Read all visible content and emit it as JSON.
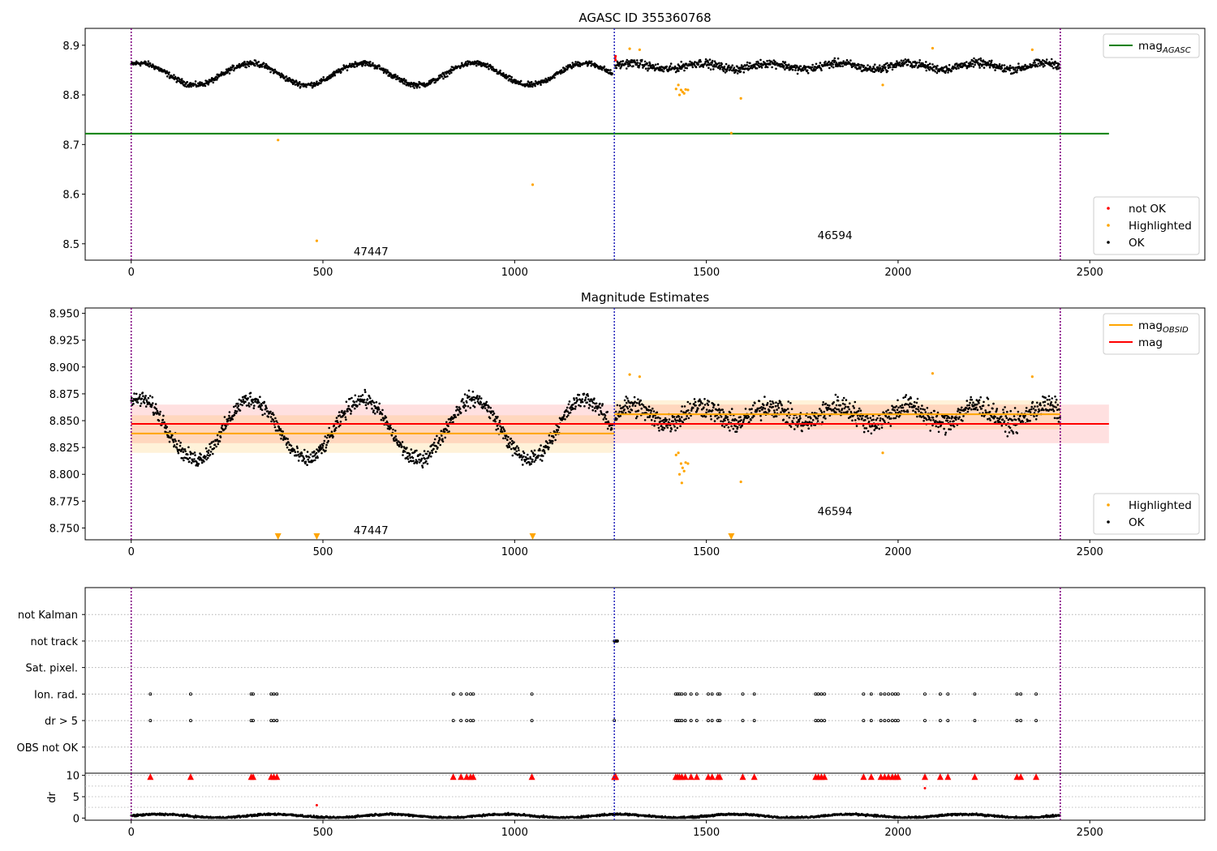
{
  "chart_data": [
    {
      "type": "scatter",
      "title": "AGASC ID 355360768",
      "xlim": [
        -120,
        2800
      ],
      "ylim": [
        8.467,
        8.934
      ],
      "xticks": [
        0,
        500,
        1000,
        1500,
        2000,
        2500
      ],
      "yticks": [
        8.5,
        8.6,
        8.7,
        8.8,
        8.9
      ],
      "ytick_labels": [
        "8.5",
        "8.6",
        "8.7",
        "8.8",
        "8.9"
      ],
      "obs_boundaries": [
        0,
        1260,
        2423
      ],
      "annotations": [
        {
          "text": "47447",
          "x": 580,
          "y": 8.485
        },
        {
          "text": "46594",
          "x": 1790,
          "y": 8.518
        }
      ],
      "legends": [
        {
          "position": "upper-right",
          "entries": [
            {
              "label": "mag",
              "sub": "AGASC",
              "style": "line",
              "color": "#008000"
            }
          ]
        },
        {
          "position": "lower-right",
          "entries": [
            {
              "label": "not OK",
              "style": "dot",
              "color": "#ff0000"
            },
            {
              "label": "Highlighted",
              "style": "dot",
              "color": "#ffa500"
            },
            {
              "label": "OK",
              "style": "dot",
              "color": "#000000"
            }
          ]
        }
      ],
      "lines": [
        {
          "name": "mag_AGASC",
          "y": 8.722,
          "x": [
            -120,
            2550
          ],
          "color": "#008000"
        }
      ],
      "series": [
        {
          "name": "OK",
          "color": "#000000",
          "segments": [
            {
              "x_start": 0,
              "x_end": 1255,
              "baseline": 8.842,
              "amplitude": 0.022,
              "period": 290,
              "phase": 240,
              "noise": 0.006
            },
            {
              "x_start": 1262,
              "x_end": 2423,
              "baseline": 8.858,
              "amplitude": 0.006,
              "period": 180,
              "phase": 0,
              "noise": 0.009
            }
          ]
        },
        {
          "name": "Highlighted",
          "color": "#ffa500",
          "points": [
            [
              383,
              8.709
            ],
            [
              484,
              8.506
            ],
            [
              1047,
              8.619
            ],
            [
              1590,
              8.793
            ],
            [
              1430,
              8.8
            ],
            [
              1434,
              8.81
            ],
            [
              1438,
              8.806
            ],
            [
              1427,
              8.82
            ],
            [
              1442,
              8.803
            ],
            [
              1446,
              8.811
            ],
            [
              1421,
              8.812
            ],
            [
              1452,
              8.81
            ],
            [
              1960,
              8.82
            ],
            [
              2090,
              8.894
            ],
            [
              2350,
              8.891
            ],
            [
              1565,
              8.723
            ],
            [
              1300,
              8.893
            ],
            [
              1326,
              8.891
            ]
          ]
        },
        {
          "name": "not OK",
          "color": "#ff0000",
          "points": [
            [
              1262,
              8.874
            ],
            [
              1263,
              8.878
            ],
            [
              1263,
              8.87
            ]
          ]
        }
      ]
    },
    {
      "type": "scatter",
      "title": "Magnitude Estimates",
      "xlim": [
        -120,
        2800
      ],
      "ylim": [
        8.739,
        8.955
      ],
      "xticks": [
        0,
        500,
        1000,
        1500,
        2000,
        2500
      ],
      "yticks": [
        8.75,
        8.775,
        8.8,
        8.825,
        8.85,
        8.875,
        8.9,
        8.925,
        8.95
      ],
      "ytick_labels": [
        "8.750",
        "8.775",
        "8.800",
        "8.825",
        "8.850",
        "8.875",
        "8.900",
        "8.925",
        "8.950"
      ],
      "obs_boundaries": [
        0,
        1260,
        2423
      ],
      "annotations": [
        {
          "text": "47447",
          "x": 580,
          "y": 8.748
        },
        {
          "text": "46594",
          "x": 1790,
          "y": 8.766
        }
      ],
      "legends": [
        {
          "position": "upper-right",
          "entries": [
            {
              "label": "mag",
              "sub": "OBSID",
              "style": "line",
              "color": "#ffa500"
            },
            {
              "label": "mag",
              "style": "line",
              "color": "#ff0000"
            }
          ]
        },
        {
          "position": "lower-right",
          "entries": [
            {
              "label": "Highlighted",
              "style": "dot",
              "color": "#ffa500"
            },
            {
              "label": "OK",
              "style": "dot",
              "color": "#000000"
            }
          ]
        }
      ],
      "bands": [
        {
          "x": [
            0,
            2550
          ],
          "y": [
            8.829,
            8.865
          ],
          "color": "#ff0000",
          "opacity": 0.12
        },
        {
          "x": [
            0,
            1260
          ],
          "y": [
            8.82,
            8.855
          ],
          "color": "#ffa500",
          "opacity": 0.15
        },
        {
          "x": [
            1260,
            2423
          ],
          "y": [
            8.842,
            8.869
          ],
          "color": "#ffa500",
          "opacity": 0.15
        }
      ],
      "lines": [
        {
          "name": "mag",
          "y": 8.847,
          "x": [
            0,
            2550
          ],
          "color": "#ff0000"
        },
        {
          "name": "mag_OBSID_47447",
          "y": 8.838,
          "x": [
            0,
            1260
          ],
          "color": "#ffa500"
        },
        {
          "name": "mag_OBSID_46594",
          "y": 8.856,
          "x": [
            1260,
            2423
          ],
          "color": "#ffa500"
        }
      ],
      "series": [
        {
          "name": "OK",
          "color": "#000000",
          "segments": [
            {
              "x_start": 0,
              "x_end": 1255,
              "baseline": 8.842,
              "amplitude": 0.028,
              "period": 290,
              "phase": 240,
              "noise": 0.008
            },
            {
              "x_start": 1262,
              "x_end": 2423,
              "baseline": 8.856,
              "amplitude": 0.008,
              "period": 180,
              "phase": 0,
              "noise": 0.011
            }
          ]
        },
        {
          "name": "Highlighted",
          "color": "#ffa500",
          "points": [
            [
              1430,
              8.8
            ],
            [
              1434,
              8.81
            ],
            [
              1438,
              8.806
            ],
            [
              1427,
              8.82
            ],
            [
              1442,
              8.803
            ],
            [
              1446,
              8.811
            ],
            [
              1421,
              8.818
            ],
            [
              1452,
              8.81
            ],
            [
              1436,
              8.792
            ],
            [
              1590,
              8.793
            ],
            [
              1960,
              8.82
            ],
            [
              2090,
              8.894
            ],
            [
              2350,
              8.891
            ],
            [
              1300,
              8.893
            ],
            [
              1326,
              8.891
            ]
          ]
        },
        {
          "name": "Highlighted (off scale)",
          "color": "#ffa500",
          "marker": "down-triangle",
          "points": [
            [
              383,
              8.742
            ],
            [
              484,
              8.742
            ],
            [
              1047,
              8.742
            ],
            [
              1565,
              8.742
            ]
          ]
        }
      ]
    },
    {
      "type": "scatter",
      "title": "",
      "xlim": [
        -120,
        2800
      ],
      "categories": [
        "OBS not OK",
        "dr > 5",
        "Ion. rad.",
        "Sat. pixel.",
        "not track",
        "not Kalman"
      ],
      "obs_boundaries": [
        0,
        1260,
        2423
      ],
      "flag_points": {
        "not track": [
          1260,
          1262,
          1264,
          1266,
          1268
        ],
        "Ion. rad.": [
          50,
          155,
          313,
          318,
          365,
          372,
          380,
          840,
          860,
          875,
          885,
          892,
          1045,
          1420,
          1425,
          1430,
          1436,
          1445,
          1460,
          1475,
          1505,
          1515,
          1530,
          1535,
          1595,
          1625,
          1785,
          1792,
          1800,
          1808,
          1910,
          1930,
          1955,
          1965,
          1975,
          1985,
          1993,
          2000,
          2070,
          2110,
          2130,
          2200,
          2310,
          2320,
          2360
        ],
        "dr > 5": [
          50,
          155,
          313,
          318,
          365,
          372,
          380,
          840,
          860,
          875,
          885,
          892,
          1045,
          1260,
          1420,
          1425,
          1430,
          1436,
          1445,
          1460,
          1475,
          1505,
          1515,
          1530,
          1535,
          1595,
          1625,
          1785,
          1792,
          1800,
          1808,
          1910,
          1930,
          1955,
          1965,
          1975,
          1985,
          1993,
          2000,
          2070,
          2110,
          2130,
          2200,
          2310,
          2320,
          2360
        ]
      }
    },
    {
      "type": "scatter",
      "title": "",
      "xlabel": "",
      "ylabel": "dr",
      "xlim": [
        -120,
        2800
      ],
      "ylim": [
        -0.5,
        10.5
      ],
      "xticks": [
        0,
        500,
        1000,
        1500,
        2000,
        2500
      ],
      "yticks": [
        0,
        5,
        10
      ],
      "ytick_labels": [
        "0",
        "5",
        "10"
      ],
      "obs_boundaries": [
        0,
        1260,
        2423
      ],
      "series": [
        {
          "name": "dr",
          "color": "#000000",
          "segments": [
            {
              "x_start": 0,
              "x_end": 2423,
              "baseline": 0.5,
              "amplitude": 0.4,
              "period": 300,
              "phase": 0,
              "noise": 0.25
            }
          ]
        },
        {
          "name": "dr clipped",
          "color": "#ff0000",
          "marker": "up-triangle",
          "y": 9.7,
          "x": [
            50,
            155,
            313,
            318,
            365,
            372,
            380,
            840,
            860,
            875,
            885,
            892,
            1045,
            1260,
            1262,
            1264,
            1420,
            1425,
            1430,
            1436,
            1445,
            1460,
            1475,
            1505,
            1515,
            1530,
            1535,
            1595,
            1625,
            1785,
            1792,
            1800,
            1808,
            1910,
            1930,
            1955,
            1965,
            1975,
            1985,
            1993,
            2000,
            2070,
            2110,
            2130,
            2200,
            2310,
            2320,
            2360
          ]
        },
        {
          "name": "dr high",
          "color": "#ff0000",
          "points": [
            [
              484,
              3.0
            ],
            [
              2070,
              7.0
            ]
          ]
        }
      ]
    }
  ]
}
